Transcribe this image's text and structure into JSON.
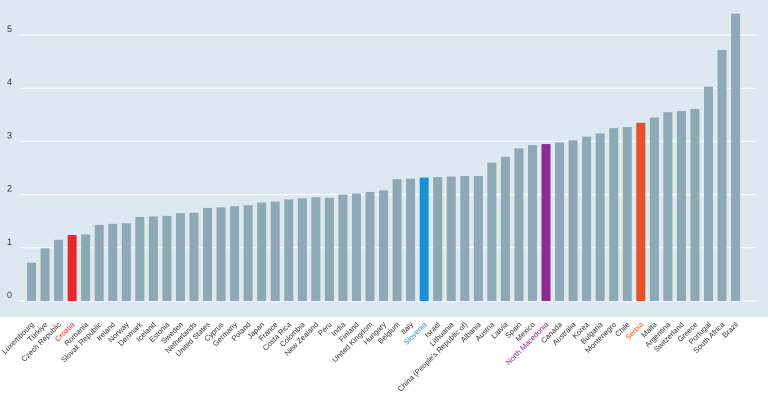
{
  "chart_data": {
    "type": "bar",
    "title": "",
    "xlabel": "",
    "ylabel": "",
    "ylim": [
      0,
      5.5
    ],
    "yticks": [
      0,
      1,
      2,
      3,
      4,
      5
    ],
    "grid": true,
    "legend": "none",
    "colors": {
      "background": "#dde9f1",
      "gridline": "#ffffff",
      "bar_default": "#8fa8b5",
      "highlight_red": "#e8262e",
      "highlight_blue": "#1a8fd6",
      "highlight_purple": "#8b2c8f",
      "highlight_orange": "#e4532a",
      "label_default": "#333333"
    },
    "categories": [
      "Luxembourg",
      "Türkiye",
      "Czech Republic",
      "Croatia",
      "Romania",
      "Slovak Republic",
      "Ireland",
      "Norway",
      "Denmark",
      "Iceland",
      "Estonia",
      "Sweden",
      "Netherlands",
      "United States",
      "Cyprus",
      "Germany",
      "Poland",
      "Japan",
      "France",
      "Costa Rica",
      "Colombia",
      "New Zealand",
      "Peru",
      "India",
      "Finland",
      "United Kingdom",
      "Hungary",
      "Belgium",
      "Italy",
      "Slovenia",
      "Israel",
      "Lithuania",
      "China (People's Republic of)",
      "Albania",
      "Austria",
      "Latvia",
      "Spain",
      "Mexico",
      "North Macedonia",
      "Canada",
      "Australia",
      "Korea",
      "Bulgaria",
      "Montenegro",
      "Chile",
      "Serbia",
      "Malta",
      "Argentina",
      "Switzerland",
      "Greece",
      "Portugal",
      "South Africa",
      "Brazil"
    ],
    "values": [
      0.72,
      0.99,
      1.15,
      1.24,
      1.25,
      1.43,
      1.45,
      1.46,
      1.58,
      1.59,
      1.6,
      1.65,
      1.66,
      1.75,
      1.76,
      1.78,
      1.8,
      1.85,
      1.87,
      1.91,
      1.93,
      1.95,
      1.94,
      2.0,
      2.02,
      2.05,
      2.08,
      2.29,
      2.3,
      2.32,
      2.33,
      2.34,
      2.35,
      2.35,
      2.6,
      2.71,
      2.87,
      2.93,
      2.95,
      2.98,
      3.02,
      3.09,
      3.15,
      3.25,
      3.27,
      3.35,
      3.45,
      3.55,
      3.57,
      3.61,
      4.03,
      4.72,
      5.4
    ],
    "highlights": {
      "Croatia": "highlight_red",
      "Slovenia": "highlight_blue",
      "North Macedonia": "highlight_purple",
      "Serbia": "highlight_orange"
    }
  }
}
